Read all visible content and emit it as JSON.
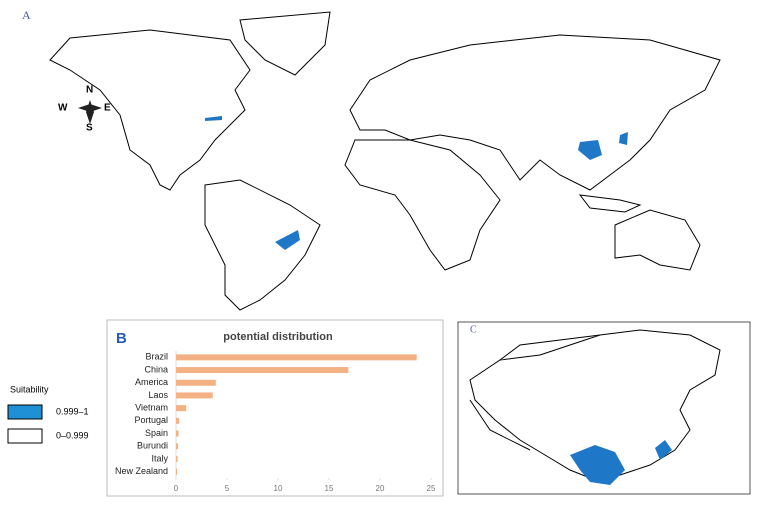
{
  "panel_a": {
    "label": "A"
  },
  "compass": {
    "n": "N",
    "s": "S",
    "e": "E",
    "w": "W"
  },
  "legend": {
    "title": "Suitability",
    "items": [
      "0.999–1",
      "0–0.999"
    ]
  },
  "panel_c": {
    "label": "C"
  },
  "chart_data": {
    "type": "bar",
    "panel_label": "B",
    "title": "potential distribution",
    "orientation": "horizontal",
    "categories": [
      "Brazil",
      "China",
      "America",
      "Laos",
      "Vietnam",
      "Portugal",
      "Spain",
      "Burundi",
      "Italy",
      "New Zealand"
    ],
    "values": [
      23.6,
      16.9,
      3.9,
      3.6,
      1.0,
      0.3,
      0.25,
      0.2,
      0.15,
      0.1
    ],
    "color": "#f4b183",
    "xlim": [
      0,
      25.5
    ],
    "xticks": [
      0,
      5,
      10,
      15,
      20,
      25
    ],
    "grid": false
  }
}
